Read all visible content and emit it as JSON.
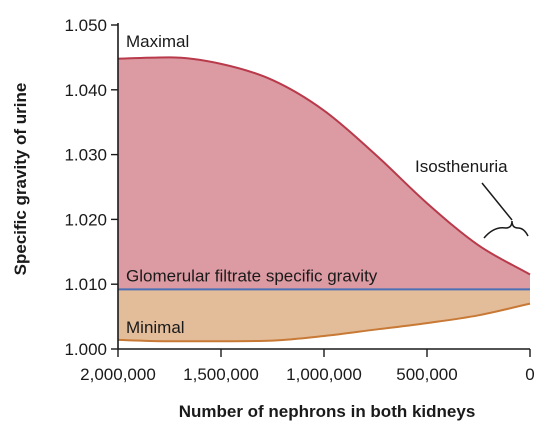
{
  "chart_data": {
    "type": "area",
    "title": "",
    "xlabel": "Number of nephrons in both kidneys",
    "ylabel": "Specific gravity of urine",
    "xlim": [
      2000000,
      0
    ],
    "ylim": [
      1.0,
      1.05
    ],
    "x_ticks": [
      {
        "value": 2000000,
        "label": "2,000,000"
      },
      {
        "value": 1500000,
        "label": "1,500,000"
      },
      {
        "value": 1000000,
        "label": "1,000,000"
      },
      {
        "value": 500000,
        "label": "500,000"
      },
      {
        "value": 0,
        "label": "0"
      }
    ],
    "y_ticks": [
      {
        "value": 1.0,
        "label": "1.000"
      },
      {
        "value": 1.01,
        "label": "1.010"
      },
      {
        "value": 1.02,
        "label": "1.020"
      },
      {
        "value": 1.03,
        "label": "1.030"
      },
      {
        "value": 1.04,
        "label": "1.040"
      },
      {
        "value": 1.05,
        "label": "1.050"
      }
    ],
    "grid": false,
    "series": [
      {
        "name": "Maximal",
        "color": "#b83a4b",
        "fill": "#dc9ba3",
        "x": [
          2000000,
          1750000,
          1500000,
          1250000,
          1000000,
          750000,
          500000,
          250000,
          0
        ],
        "y": [
          1.0448,
          1.045,
          1.044,
          1.0415,
          1.0368,
          1.03,
          1.0225,
          1.016,
          1.0115
        ]
      },
      {
        "name": "Glomerular filtrate specific gravity",
        "color": "#4a6fb5",
        "x": [
          2000000,
          0
        ],
        "y": [
          1.0092,
          1.0092
        ]
      },
      {
        "name": "Minimal",
        "color": "#c87935",
        "fill": "#e3bd9a",
        "x": [
          2000000,
          1750000,
          1500000,
          1250000,
          1000000,
          750000,
          500000,
          250000,
          0
        ],
        "y": [
          1.0014,
          1.0012,
          1.0012,
          1.0013,
          1.002,
          1.003,
          1.004,
          1.0052,
          1.007
        ]
      }
    ],
    "annotations": [
      {
        "text": "Isosthenuria",
        "target": "converging curves near 0 nephrons"
      }
    ]
  }
}
